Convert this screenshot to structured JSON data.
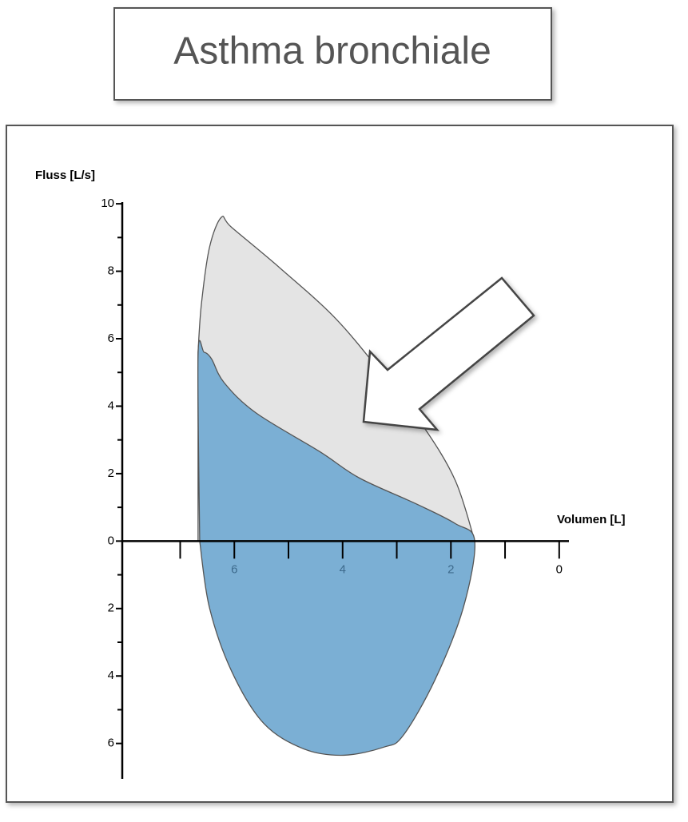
{
  "title": "Asthma bronchiale",
  "chart_data": {
    "type": "area",
    "ylabel": "Fluss [L/s]",
    "xlabel": "Volumen [L]",
    "xlim": [
      8.07,
      -0.18
    ],
    "ylim": [
      -7.05,
      10.05
    ],
    "xticks": [
      6,
      4,
      2,
      0
    ],
    "xminorticks": [
      7,
      5,
      3,
      1
    ],
    "yticks": [
      10,
      8,
      6,
      4,
      2,
      0,
      {
        "value": -2,
        "label": "2"
      },
      {
        "value": -4,
        "label": "4"
      },
      {
        "value": -6,
        "label": "6"
      }
    ],
    "yminorticks": [
      9,
      7,
      5,
      3,
      1,
      -1,
      -3,
      -5
    ],
    "series": [
      {
        "color": "#e4e4e4",
        "x": [
          6.67,
          6.61,
          6.46,
          6.24,
          6.05,
          5.16,
          4.13,
          3.24,
          2.51,
          1.92,
          1.56
        ],
        "y": [
          5.6,
          7.0,
          8.7,
          9.6,
          9.3,
          8.1,
          6.6,
          4.9,
          3.4,
          1.8,
          0
        ]
      },
      {
        "color": "#7bafd4",
        "x": [
          6.64,
          6.67,
          6.56,
          6.42,
          6.19,
          5.6,
          4.42,
          3.69,
          2.65,
          1.92,
          1.56,
          1.77,
          2.29,
          2.88,
          3.24,
          3.98,
          4.72,
          5.46,
          6.05,
          6.46,
          6.64
        ],
        "y": [
          0,
          5.5,
          5.6,
          5.4,
          4.7,
          3.8,
          2.65,
          1.87,
          1.11,
          0.52,
          0,
          -1.97,
          -4.1,
          -5.76,
          -6.11,
          -6.35,
          -6.16,
          -5.4,
          -3.86,
          -1.97,
          0
        ]
      }
    ]
  }
}
